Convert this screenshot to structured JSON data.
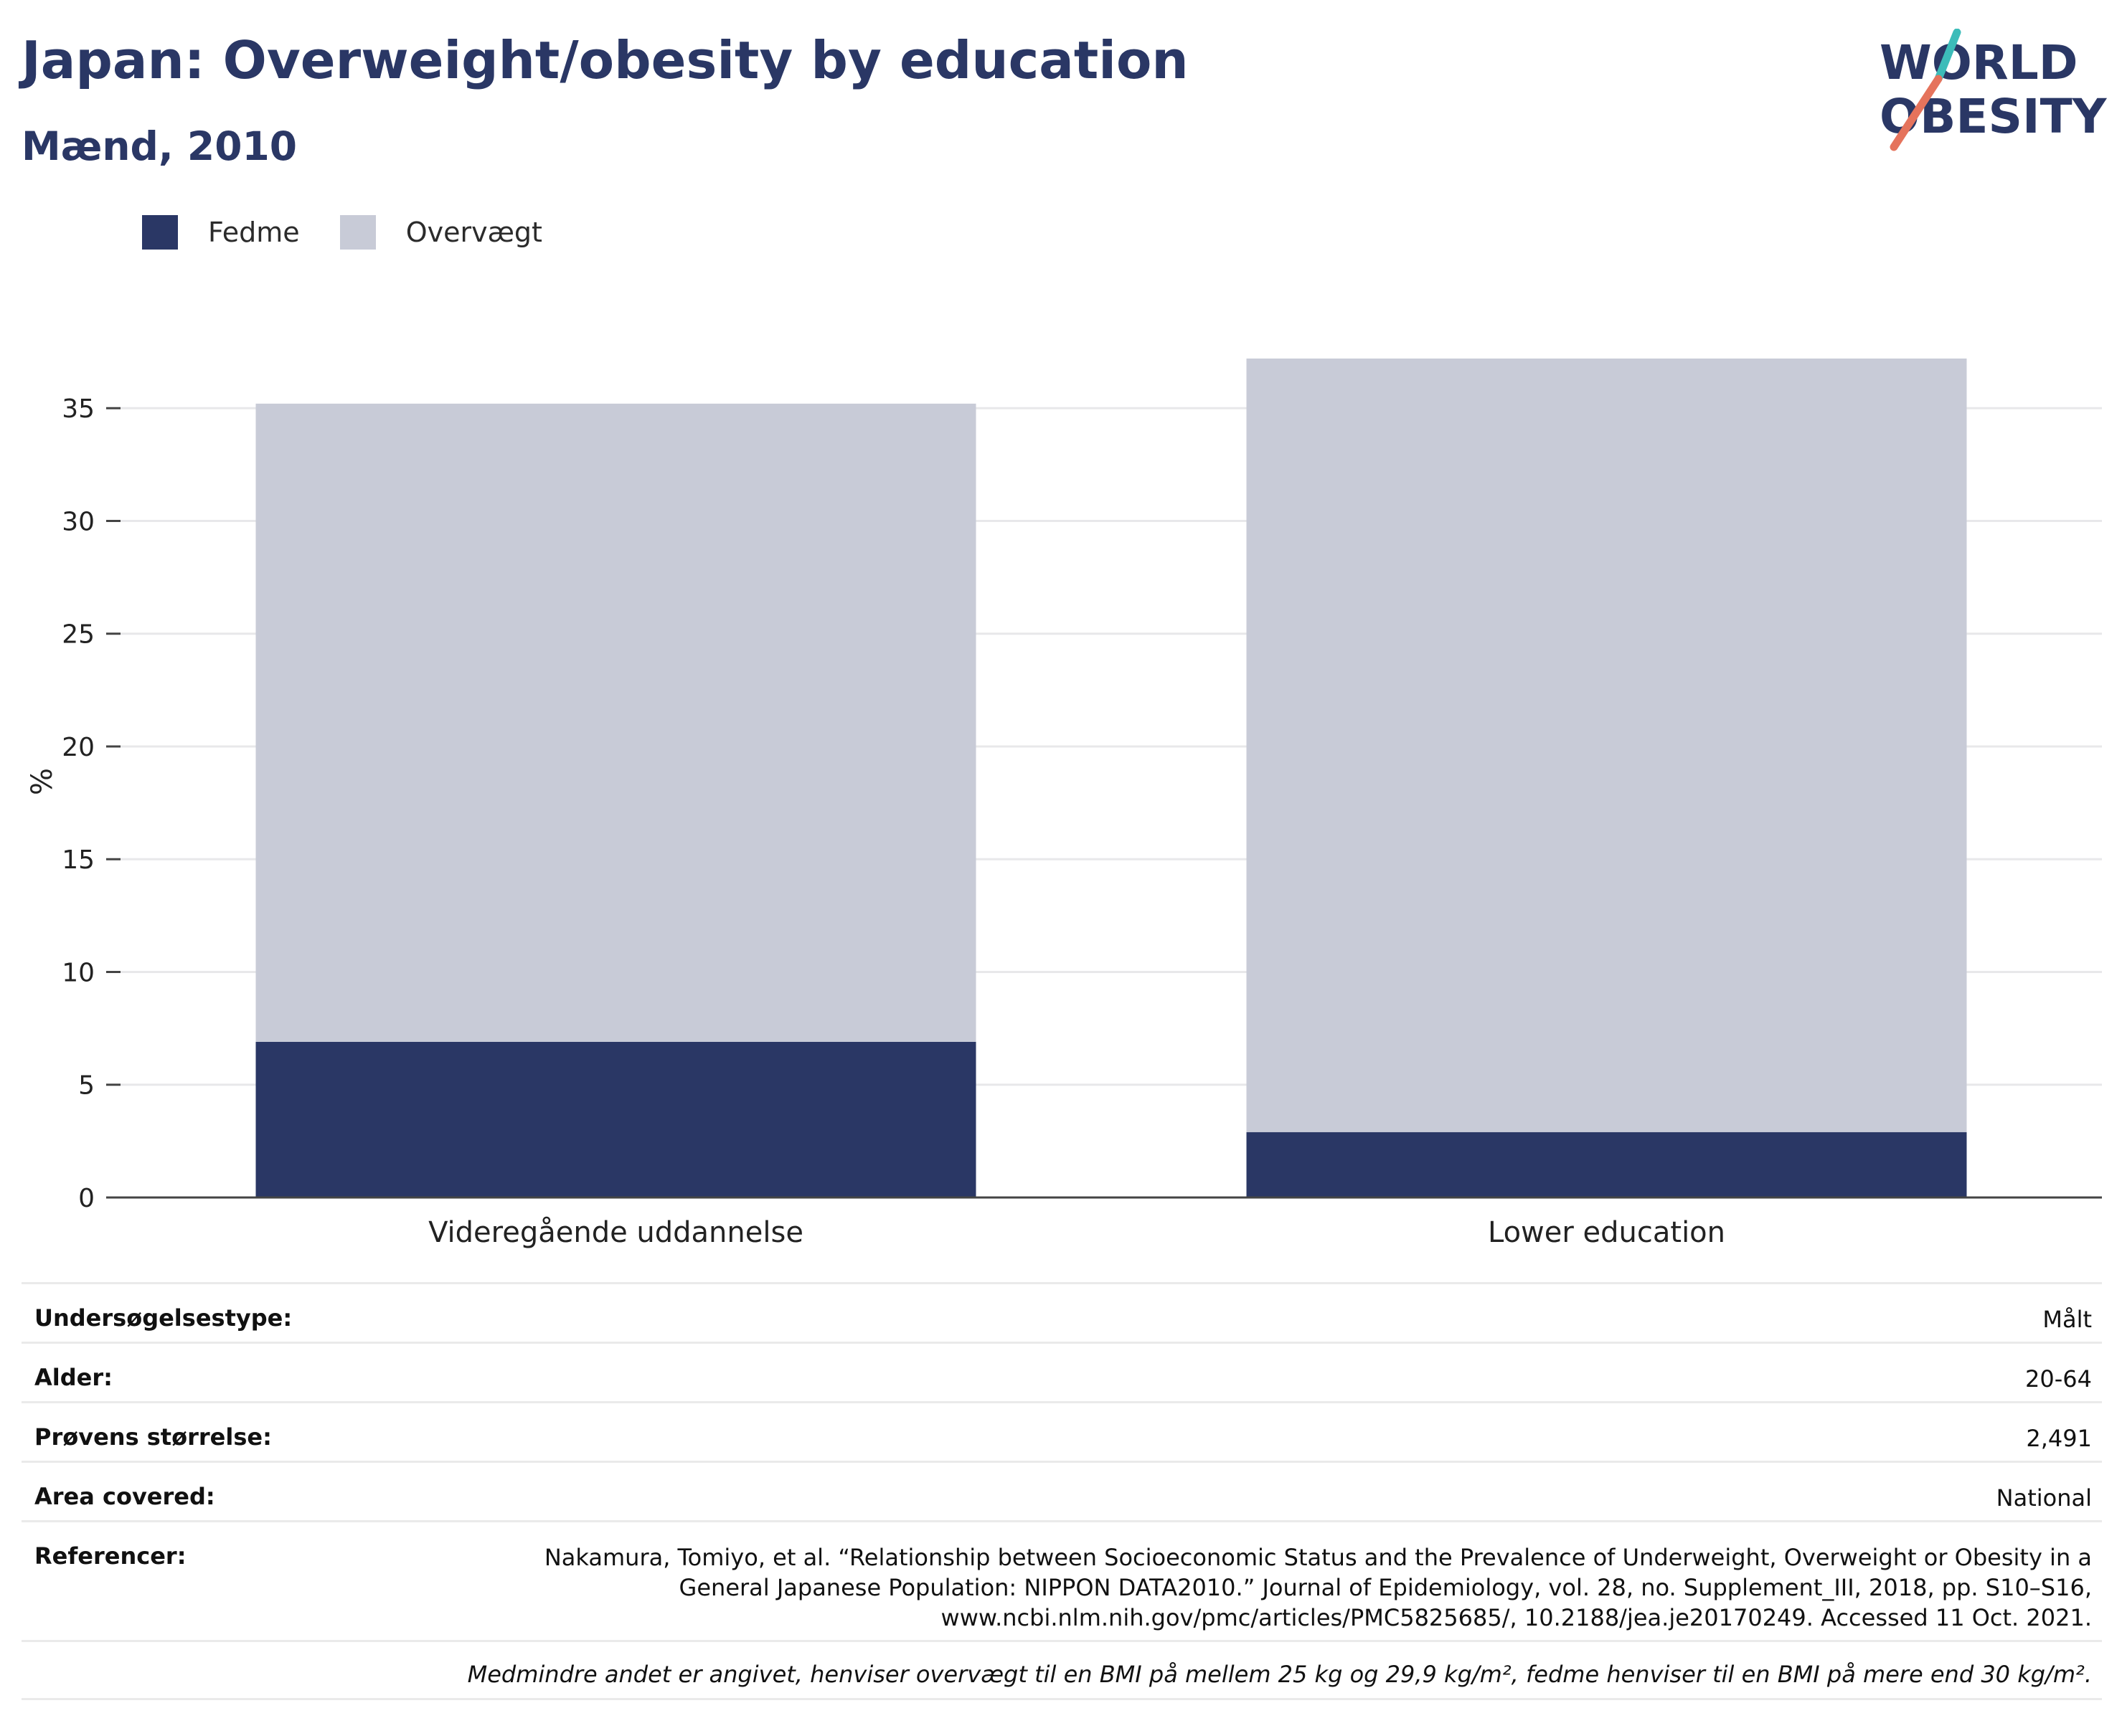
{
  "header": {
    "title": "Japan: Overweight/obesity by education",
    "subtitle": "Mænd, 2010"
  },
  "logo": {
    "line1": "WORLD",
    "line2": "OBESITY",
    "colors": [
      "#2a3765",
      "#3cbcb9",
      "#e5735c"
    ]
  },
  "legend": [
    {
      "label": "Fedme",
      "color": "#2a3765"
    },
    {
      "label": "Overvægt",
      "color": "#c8cbd7"
    }
  ],
  "chart_data": {
    "type": "bar",
    "stacked": true,
    "categories": [
      "Videregående uddannelse",
      "Lower education"
    ],
    "series": [
      {
        "name": "Fedme",
        "color": "#2a3765",
        "values": [
          6.9,
          2.9
        ]
      },
      {
        "name": "Overvægt",
        "color": "#c8cbd7",
        "values": [
          28.3,
          34.3
        ]
      }
    ],
    "ylabel": "%",
    "ylim": [
      0,
      37.2
    ],
    "yticks": [
      0,
      5,
      10,
      15,
      20,
      25,
      30,
      35
    ],
    "grid": true,
    "legend_position": "top-left"
  },
  "info": {
    "rows": [
      {
        "label": "Undersøgelsestype:",
        "value": "Målt"
      },
      {
        "label": "Alder:",
        "value": "20-64"
      },
      {
        "label": "Prøvens størrelse:",
        "value": "2,491"
      },
      {
        "label": "Area covered:",
        "value": "National"
      }
    ],
    "reference": {
      "label": "Referencer:",
      "value": "Nakamura, Tomiyo, et al. “Relationship between Socioeconomic Status and the Prevalence of Underweight, Overweight or Obesity in a General Japanese Population: NIPPON DATA2010.” Journal of Epidemiology, vol. 28, no. Supplement_III, 2018, pp. S10–S16, www.ncbi.nlm.nih.gov/pmc/articles/PMC5825685/, 10.2188/jea.je20170249. Accessed 11 Oct. 2021."
    },
    "note": "Medmindre andet er angivet, henviser overvægt til en BMI på mellem 25 kg og 29,9 kg/m², fedme henviser til en BMI på mere end 30 kg/m²."
  }
}
